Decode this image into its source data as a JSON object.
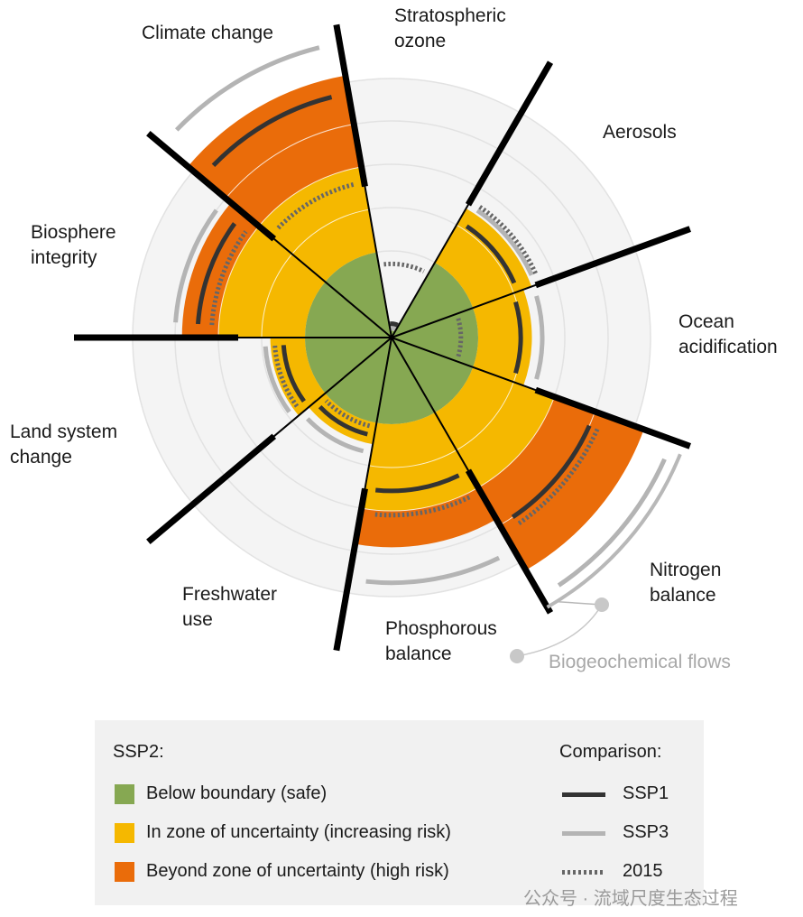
{
  "chart_data": {
    "type": "polar-wedge",
    "title": "",
    "boundary_unit": 1,
    "zones": {
      "safe_max": 1,
      "uncertainty_max": 2
    },
    "grid_rings": [
      1,
      1.5,
      2,
      2.5,
      3
    ],
    "sectors": [
      {
        "name": "Stratospheric ozone",
        "ssp2": 0.08,
        "ssp1": 0.16,
        "ssp3": 0.11,
        "y2015": 0.85
      },
      {
        "name": "Aerosols",
        "ssp2": 1.72,
        "ssp1": 1.55,
        "ssp3": 1.77,
        "y2015": 1.82
      },
      {
        "name": "Ocean acidification",
        "ssp2": 1.62,
        "ssp1": 1.49,
        "ssp3": 1.74,
        "y2015": 0.8
      },
      {
        "name": "Nitrogen balance",
        "ssp2": 3.1,
        "ssp1": 2.5,
        "ssp3": 3.45,
        "y2015": 2.6
      },
      {
        "name": "Phosphorous balance",
        "ssp2": 2.42,
        "ssp1": 1.77,
        "ssp3": 2.83,
        "y2015": 2.05
      },
      {
        "name": "Freshwater use",
        "ssp2": 1.25,
        "ssp1": 1.15,
        "ssp3": 1.35,
        "y2015": 1.05
      },
      {
        "name": "Land system change",
        "ssp2": 1.4,
        "ssp1": 1.25,
        "ssp3": 1.46,
        "y2015": 1.35
      },
      {
        "name": "Biosphere integrity",
        "ssp2": 2.42,
        "ssp1": 2.24,
        "ssp3": 2.5,
        "y2015": 2.08
      },
      {
        "name": "Climate change",
        "ssp2": 3.07,
        "ssp1": 2.86,
        "ssp3": 3.45,
        "y2015": 1.82
      }
    ],
    "group_label": "Biogeochemical flows"
  },
  "labels": {
    "ozone": "Stratospheric\nozone",
    "aerosols": "Aerosols",
    "ocean": "Ocean\nacidification",
    "nitrogen": "Nitrogen\nbalance",
    "phosphorus": "Phosphorous\nbalance",
    "freshwater": "Freshwater\nuse",
    "land": "Land system\nchange",
    "biosphere": "Biosphere\nintegrity",
    "climate": "Climate change",
    "biogeo": "Biogeochemical flows"
  },
  "legend": {
    "title": "SSP2:",
    "items": [
      "Below boundary (safe)",
      "In zone of uncertainty (increasing risk)",
      "Beyond zone of uncertainty (high risk)"
    ],
    "comparison_title": "Comparison:",
    "comparison": [
      "SSP1",
      "SSP3",
      "2015"
    ]
  },
  "colors": {
    "safe": "#86a852",
    "uncertain": "#f5b800",
    "high": "#ea6c0a",
    "ssp1": "#333333",
    "ssp3": "#b4b4b4",
    "y2015": "#666666",
    "disc": "#f4f4f4"
  },
  "watermark": "公众号 · 流域尺度生态过程"
}
